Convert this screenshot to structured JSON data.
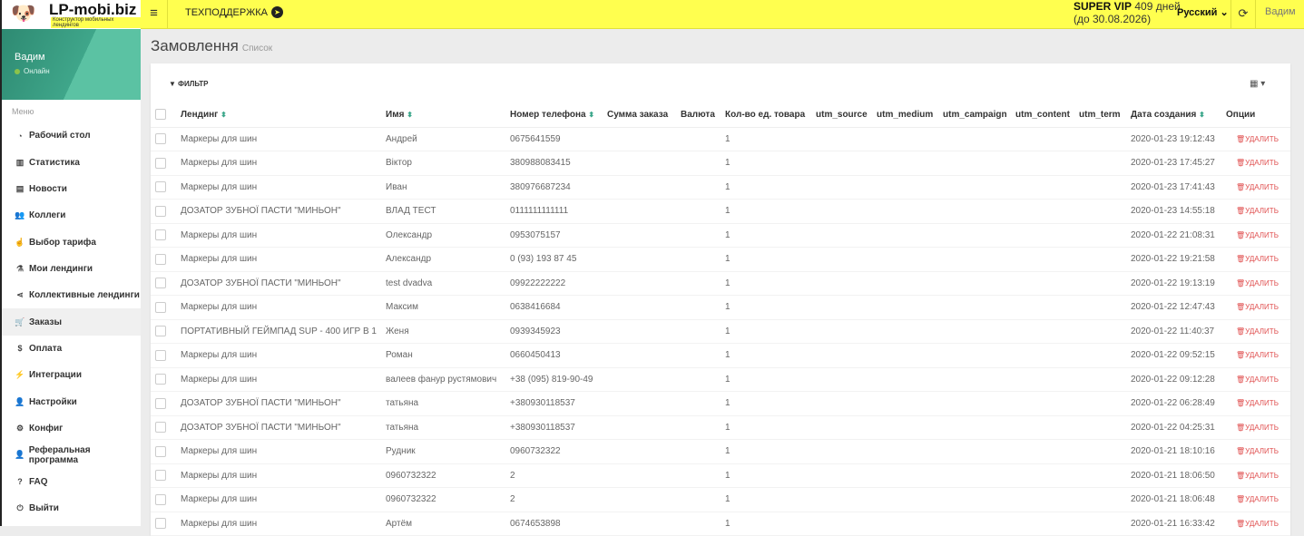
{
  "header": {
    "logo_text": "LP-mobi.biz",
    "logo_tagline": "Конструктор мобильных лендингов",
    "support": "ТЕХПОДДЕРЖКА",
    "plan": "SUPER VIP",
    "days": "409 дней",
    "until": "(до 30.08.2026)",
    "language": "Русский",
    "user": "Вадим"
  },
  "sidebar": {
    "user": "Вадим",
    "status": "Онлайн",
    "menu_label": "Меню",
    "items": [
      {
        "label": "Рабочий стол",
        "icon": "dashboard-icon",
        "glyph": "◔"
      },
      {
        "label": "Статистика",
        "icon": "bar-chart-icon",
        "glyph": "▥"
      },
      {
        "label": "Новости",
        "icon": "newspaper-icon",
        "glyph": "▤"
      },
      {
        "label": "Коллеги",
        "icon": "users-icon",
        "glyph": "👥"
      },
      {
        "label": "Выбор тарифа",
        "icon": "hand-pointer-icon",
        "glyph": "☝"
      },
      {
        "label": "Мои лендинги",
        "icon": "flask-icon",
        "glyph": "⚗"
      },
      {
        "label": "Коллективные лендинги",
        "icon": "share-icon",
        "glyph": "⋖"
      },
      {
        "label": "Заказы",
        "icon": "cart-icon",
        "glyph": "🛒",
        "active": true
      },
      {
        "label": "Оплата",
        "icon": "dollar-icon",
        "glyph": "$"
      },
      {
        "label": "Интеграции",
        "icon": "plug-icon",
        "glyph": "⚡"
      },
      {
        "label": "Настройки",
        "icon": "user-icon",
        "glyph": "👤"
      },
      {
        "label": "Конфиг",
        "icon": "cogs-icon",
        "glyph": "⚙"
      },
      {
        "label": "Реферальная программа",
        "icon": "user-plus-icon",
        "glyph": "👤"
      },
      {
        "label": "FAQ",
        "icon": "question-icon",
        "glyph": "?"
      },
      {
        "label": "Выйти",
        "icon": "power-icon",
        "glyph": "⏻"
      }
    ]
  },
  "page": {
    "title": "Замовлення",
    "subtitle": "Список",
    "filter": "ФИЛЬТР"
  },
  "table": {
    "columns": [
      "Лендинг",
      "Имя",
      "Номер телефона",
      "Сумма заказа",
      "Валюта",
      "Кол-во ед. товара",
      "utm_source",
      "utm_medium",
      "utm_campaign",
      "utm_content",
      "utm_term",
      "Дата создания",
      "Опции"
    ],
    "sortable": [
      true,
      true,
      true,
      false,
      false,
      false,
      false,
      false,
      false,
      false,
      false,
      true,
      false
    ],
    "delete_label": "УДАЛИТЬ",
    "rows": [
      [
        "Маркеры для шин",
        "Андрей",
        "0675641559",
        "",
        "",
        "1",
        "",
        "",
        "",
        "",
        "",
        "2020-01-23 19:12:43"
      ],
      [
        "Маркеры для шин",
        "Віктор",
        "380988083415",
        "",
        "",
        "1",
        "",
        "",
        "",
        "",
        "",
        "2020-01-23 17:45:27"
      ],
      [
        "Маркеры для шин",
        "Иван",
        "380976687234",
        "",
        "",
        "1",
        "",
        "",
        "",
        "",
        "",
        "2020-01-23 17:41:43"
      ],
      [
        "ДОЗАТОР ЗУБНОЇ ПАСТИ \"МИНЬОН\"",
        "ВЛАД ТЕСТ",
        "0111111111111",
        "",
        "",
        "1",
        "",
        "",
        "",
        "",
        "",
        "2020-01-23 14:55:18"
      ],
      [
        "Маркеры для шин",
        "Олександр",
        "0953075157",
        "",
        "",
        "1",
        "",
        "",
        "",
        "",
        "",
        "2020-01-22 21:08:31"
      ],
      [
        "Маркеры для шин",
        "Александр",
        "0 (93) 193 87 45",
        "",
        "",
        "1",
        "",
        "",
        "",
        "",
        "",
        "2020-01-22 19:21:58"
      ],
      [
        "ДОЗАТОР ЗУБНОЇ ПАСТИ \"МИНЬОН\"",
        "test dvadva",
        "09922222222",
        "",
        "",
        "1",
        "",
        "",
        "",
        "",
        "",
        "2020-01-22 19:13:19"
      ],
      [
        "Маркеры для шин",
        "Максим",
        "0638416684",
        "",
        "",
        "1",
        "",
        "",
        "",
        "",
        "",
        "2020-01-22 12:47:43"
      ],
      [
        "ПОРТАТИВНЫЙ ГЕЙМПАД SUP - 400 ИГР В 1",
        "Женя",
        "0939345923",
        "",
        "",
        "1",
        "",
        "",
        "",
        "",
        "",
        "2020-01-22 11:40:37"
      ],
      [
        "Маркеры для шин",
        "Роман",
        "0660450413",
        "",
        "",
        "1",
        "",
        "",
        "",
        "",
        "",
        "2020-01-22 09:52:15"
      ],
      [
        "Маркеры для шин",
        "валеев фанур рустямович",
        "+38 (095) 819-90-49",
        "",
        "",
        "1",
        "",
        "",
        "",
        "",
        "",
        "2020-01-22 09:12:28"
      ],
      [
        "ДОЗАТОР ЗУБНОЇ ПАСТИ \"МИНЬОН\"",
        "татьяна",
        "+380930118537",
        "",
        "",
        "1",
        "",
        "",
        "",
        "",
        "",
        "2020-01-22 06:28:49"
      ],
      [
        "ДОЗАТОР ЗУБНОЇ ПАСТИ \"МИНЬОН\"",
        "татьяна",
        "+380930118537",
        "",
        "",
        "1",
        "",
        "",
        "",
        "",
        "",
        "2020-01-22 04:25:31"
      ],
      [
        "Маркеры для шин",
        "Рудник",
        "0960732322",
        "",
        "",
        "1",
        "",
        "",
        "",
        "",
        "",
        "2020-01-21 18:10:16"
      ],
      [
        "Маркеры для шин",
        "0960732322",
        "2",
        "",
        "",
        "1",
        "",
        "",
        "",
        "",
        "",
        "2020-01-21 18:06:50"
      ],
      [
        "Маркеры для шин",
        "0960732322",
        "2",
        "",
        "",
        "1",
        "",
        "",
        "",
        "",
        "",
        "2020-01-21 18:06:48"
      ],
      [
        "Маркеры для шин",
        "Артём",
        "0674653898",
        "",
        "",
        "1",
        "",
        "",
        "",
        "",
        "",
        "2020-01-21 16:33:42"
      ]
    ]
  }
}
